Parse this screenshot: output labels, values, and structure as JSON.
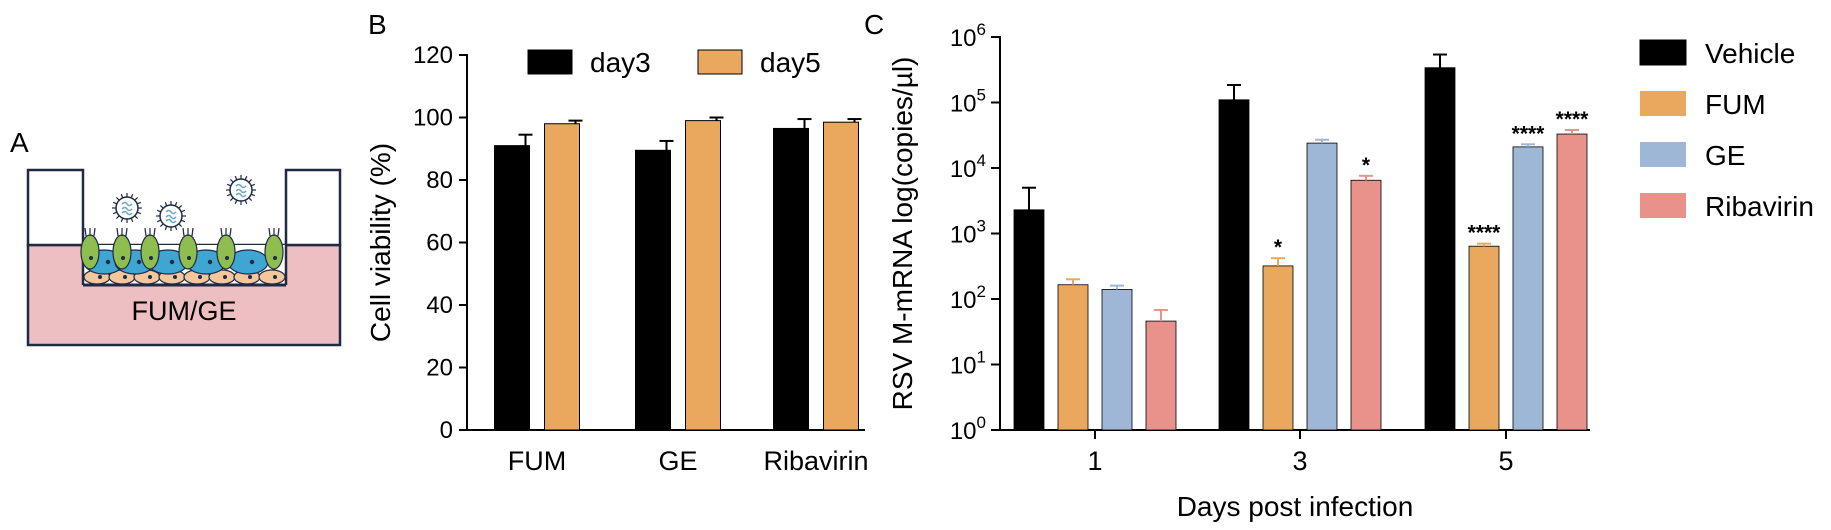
{
  "panels": {
    "a": {
      "letter": "A",
      "well_label": "FUM/GE"
    },
    "b": {
      "letter": "B"
    },
    "c": {
      "letter": "C"
    }
  },
  "colors": {
    "day3": "#000000",
    "day5": "#E9A85D",
    "Vehicle": "#000000",
    "FUM": "#E9A85D",
    "GE": "#9FB7D6",
    "Ribavirin": "#E9928C",
    "medium": "#EDBFC3",
    "virus": "#6AA9BE",
    "cell_green": "#8DBE4F",
    "cell_blue": "#3FA6D3",
    "cell_base": "#F3C79B"
  },
  "icons": {
    "virus": "virus-particle-icon",
    "cell": "epithelial-cell-icon"
  },
  "chart_data": [
    {
      "id": "panel-b",
      "type": "bar",
      "title": "",
      "xlabel": "",
      "ylabel": "Cell viability (%)",
      "ylim": [
        0,
        120
      ],
      "yticks": [
        "0",
        "20",
        "40",
        "60",
        "80",
        "100",
        "120"
      ],
      "categories": [
        "FUM",
        "GE",
        "Ribavirin"
      ],
      "legend_position": "top",
      "series": [
        {
          "name": "day3",
          "values": [
            91,
            89.5,
            96.5
          ],
          "errors": [
            3.5,
            3,
            3
          ]
        },
        {
          "name": "day5",
          "values": [
            98,
            99,
            98.5
          ],
          "errors": [
            1,
            1,
            1
          ]
        }
      ]
    },
    {
      "id": "panel-c",
      "type": "bar",
      "title": "",
      "xlabel": "Days post infection",
      "ylabel": "RSV M-mRNA log(copies/µl)",
      "yscale": "log",
      "ylim": [
        1,
        1000000
      ],
      "ytick_base": "10",
      "ytick_exponents": [
        "0",
        "1",
        "2",
        "3",
        "4",
        "5",
        "6"
      ],
      "categories": [
        "1",
        "3",
        "5"
      ],
      "legend_position": "right",
      "series": [
        {
          "name": "Vehicle",
          "values": [
            2300,
            110000,
            340000
          ],
          "errors_upper": [
            5000,
            185000,
            540000
          ],
          "annotations": [
            "",
            "",
            ""
          ]
        },
        {
          "name": "FUM",
          "values": [
            165,
            320,
            640
          ],
          "errors_upper": [
            200,
            420,
            700
          ],
          "annotations": [
            "",
            "*",
            "****"
          ]
        },
        {
          "name": "GE",
          "values": [
            140,
            24000,
            21000
          ],
          "errors_upper": [
            160,
            27000,
            23000
          ],
          "annotations": [
            "",
            "",
            "****"
          ]
        },
        {
          "name": "Ribavirin",
          "values": [
            46,
            6500,
            33000
          ],
          "errors_upper": [
            68,
            7600,
            38000
          ],
          "annotations": [
            "",
            "*",
            "****"
          ]
        }
      ]
    }
  ]
}
